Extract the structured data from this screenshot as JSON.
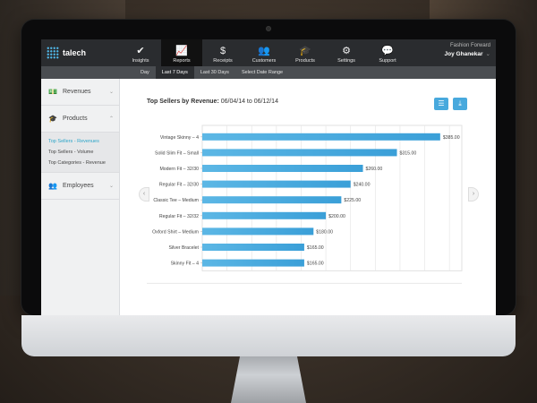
{
  "app": {
    "logo_text": "talech"
  },
  "topnav": {
    "items": [
      {
        "label": "Insights",
        "icon": "insights-icon",
        "glyph": "✔"
      },
      {
        "label": "Reports",
        "icon": "reports-icon",
        "glyph": "📈"
      },
      {
        "label": "Receipts",
        "icon": "receipts-icon",
        "glyph": "$"
      },
      {
        "label": "Customers",
        "icon": "customers-icon",
        "glyph": "👥"
      },
      {
        "label": "Products",
        "icon": "products-icon",
        "glyph": "🎓"
      },
      {
        "label": "Settings",
        "icon": "settings-icon",
        "glyph": "⚙"
      },
      {
        "label": "Support",
        "icon": "support-icon",
        "glyph": "💬"
      }
    ],
    "active_index": 1,
    "account": {
      "company": "Fashion Forward",
      "user": "Joy Ghanekar"
    }
  },
  "subnav": {
    "items": [
      "Day",
      "Last 7 Days",
      "Last 30 Days",
      "Select Date Range"
    ],
    "active_index": 1
  },
  "sidebar": {
    "revenues": {
      "label": "Revenues",
      "icon": "revenues-icon"
    },
    "products": {
      "label": "Products",
      "icon": "products-icon",
      "subitems": [
        "Top Sellers - Revenues",
        "Top Sellers - Volume",
        "Top Categories - Revenue"
      ],
      "active_index": 0
    },
    "employees": {
      "label": "Employees",
      "icon": "employees-icon"
    }
  },
  "main": {
    "title_prefix": "Top Sellers by Revenue:",
    "title_range": " 06/04/14 to 06/12/14"
  },
  "chart_data": {
    "type": "bar",
    "orientation": "horizontal",
    "categories": [
      "Vintage Skinny – 4",
      "Solid Slim Fit – Small",
      "Modern Fit – 32/30",
      "Regular Fit – 32/30",
      "Classic Tee – Medium",
      "Regular Fit – 32/32",
      "Oxford Shirt – Medium",
      "Silver Bracelet",
      "Skinny Fit – 4"
    ],
    "values": [
      385,
      315,
      260,
      240,
      225,
      200,
      180,
      165,
      165
    ],
    "value_labels": [
      "$385.00",
      "$315.00",
      "$260.00",
      "$240.00",
      "$225.00",
      "$200.00",
      "$180.00",
      "$165.00",
      "$165.00"
    ],
    "xlim": [
      0,
      420
    ],
    "grid": true,
    "bar_color": "#3a9fd8"
  }
}
